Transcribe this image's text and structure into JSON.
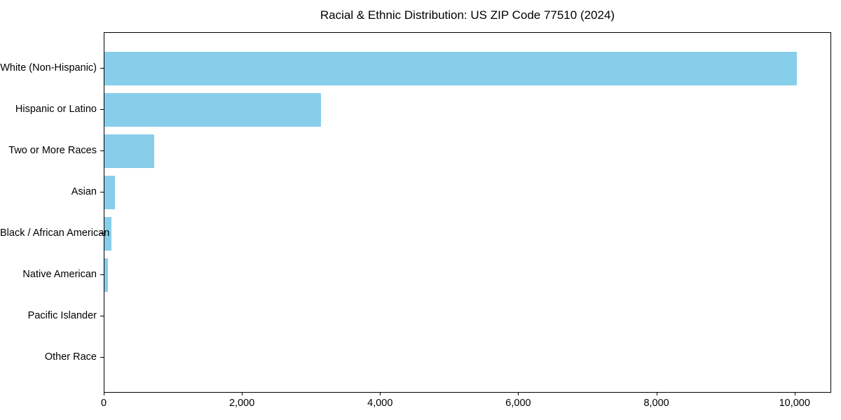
{
  "chart_data": {
    "type": "bar",
    "orientation": "horizontal",
    "title": "Racial & Ethnic Distribution: US ZIP Code 77510 (2024)",
    "categories": [
      "White (Non-Hispanic)",
      "Hispanic or Latino",
      "Two or More Races",
      "Asian",
      "Black / African American",
      "Native American",
      "Pacific Islander",
      "Other Race"
    ],
    "values": [
      10020,
      3135,
      720,
      150,
      98,
      54,
      0,
      0
    ],
    "xlabel": "",
    "ylabel": "",
    "x_ticks": [
      0,
      2000,
      4000,
      6000,
      8000,
      10000
    ],
    "x_tick_labels": [
      "0",
      "2,000",
      "4,000",
      "6,000",
      "8,000",
      "10,000"
    ],
    "xlim": [
      0,
      10530
    ],
    "grid": false,
    "legend": null,
    "bar_color": "#87CEEB",
    "axis_color": "#000000",
    "background_color": "#FFFFFF"
  }
}
